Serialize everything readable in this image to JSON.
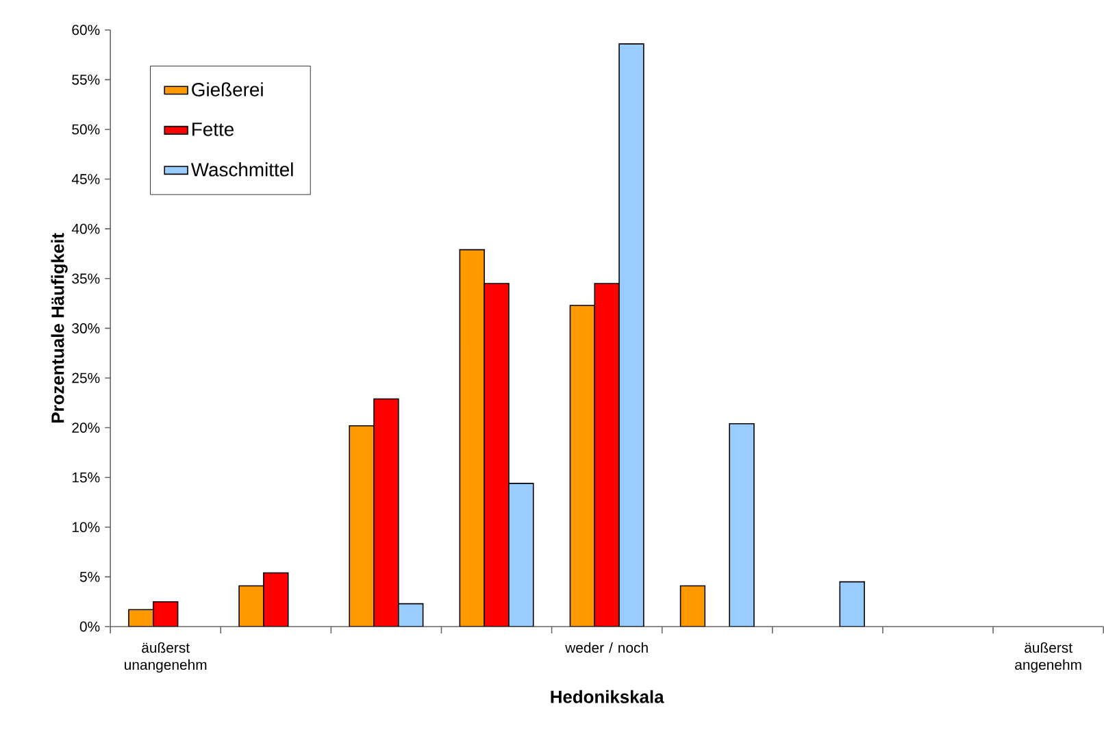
{
  "chart_data": {
    "type": "bar",
    "xlabel": "Hedonikskala",
    "ylabel": "Prozentuale Häufigkeit",
    "categories": [
      "äußerst unangenehm",
      null,
      null,
      null,
      "weder / noch",
      null,
      null,
      null,
      "äußerst angenehm"
    ],
    "series": [
      {
        "name": "Gießerei",
        "color": "#ff9900",
        "values": [
          1.7,
          4.1,
          20.2,
          37.9,
          32.3,
          4.1,
          null,
          null,
          null
        ]
      },
      {
        "name": "Fette",
        "color": "#ff0000",
        "values": [
          2.5,
          5.4,
          22.9,
          34.5,
          34.5,
          null,
          null,
          null,
          null
        ]
      },
      {
        "name": "Waschmittel",
        "color": "#99ccff",
        "values": [
          null,
          null,
          2.3,
          14.4,
          58.6,
          20.4,
          4.5,
          null,
          null
        ]
      }
    ],
    "ylim": [
      0,
      60
    ],
    "yticks": [
      {
        "value": 0,
        "label": "0%"
      },
      {
        "value": 5,
        "label": "5%"
      },
      {
        "value": 10,
        "label": "10%"
      },
      {
        "value": 15,
        "label": "15%"
      },
      {
        "value": 20,
        "label": "20%"
      },
      {
        "value": 25,
        "label": "25%"
      },
      {
        "value": 30,
        "label": "30%"
      },
      {
        "value": 35,
        "label": "35%"
      },
      {
        "value": 40,
        "label": "40%"
      },
      {
        "value": 45,
        "label": "45%"
      },
      {
        "value": 50,
        "label": "50%"
      },
      {
        "value": 55,
        "label": "55%"
      },
      {
        "value": 60,
        "label": "60%"
      }
    ],
    "legend": "top left"
  }
}
